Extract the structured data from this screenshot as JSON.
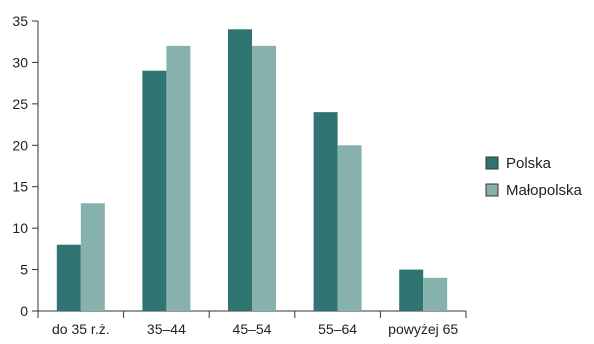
{
  "chart_data": {
    "type": "bar",
    "categories": [
      "do 35 r.ż.",
      "35–44",
      "45–54",
      "55–64",
      "powyżej 65"
    ],
    "series": [
      {
        "name": "Polska",
        "values": [
          8,
          29,
          34,
          24,
          5
        ],
        "color": "#2f7470"
      },
      {
        "name": "Małopolska",
        "values": [
          13,
          32,
          32,
          20,
          4
        ],
        "color": "#86b1ad"
      }
    ],
    "y_ticks": [
      0,
      5,
      10,
      15,
      20,
      25,
      30,
      35
    ],
    "ylim": [
      0,
      35
    ],
    "grid": false,
    "legend_position": "right",
    "axis_color": "#333333"
  }
}
